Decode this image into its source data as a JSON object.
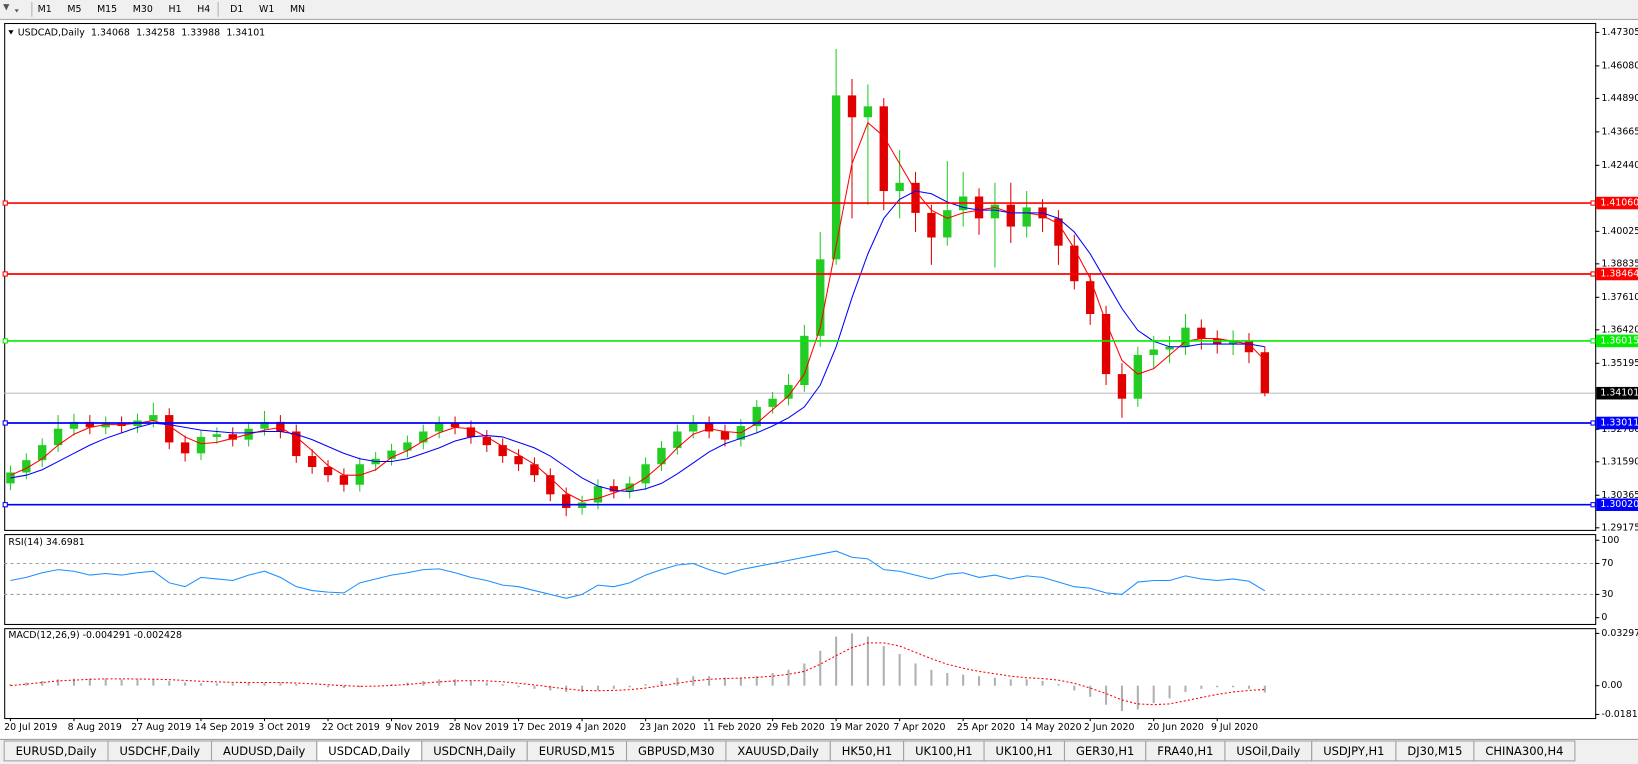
{
  "toolbar": {
    "timeframes": [
      "M1",
      "M5",
      "M15",
      "M30",
      "H1",
      "H4",
      "D1",
      "W1",
      "MN"
    ]
  },
  "tabs": [
    "EURUSD,Daily",
    "USDCHF,Daily",
    "AUDUSD,Daily",
    "USDCAD,Daily",
    "USDCNH,Daily",
    "EURUSD,M15",
    "GBPUSD,M30",
    "XAUUSD,Daily",
    "HK50,H1",
    "UK100,H1",
    "UK100,H1",
    "GER30,H1",
    "FRA40,H1",
    "USOil,Daily",
    "USDJPY,H1",
    "DJ30,M15",
    "CHINA300,H4"
  ],
  "active_tab": 3,
  "chart_data": [
    {
      "type": "candlestick",
      "title": "USDCAD,Daily",
      "quote": [
        1.34068,
        1.34258,
        1.33988,
        1.34101
      ],
      "categories": [
        "20 Jul 2019",
        null,
        null,
        null,
        "8 Aug 2019",
        null,
        null,
        null,
        "27 Aug 2019",
        null,
        null,
        null,
        "14 Sep 2019",
        null,
        null,
        null,
        "3 Oct 2019",
        null,
        null,
        null,
        "22 Oct 2019",
        null,
        null,
        null,
        "9 Nov 2019",
        null,
        null,
        null,
        "28 Nov 2019",
        null,
        null,
        null,
        "17 Dec 2019",
        null,
        null,
        null,
        "4 Jan 2020",
        null,
        null,
        null,
        "23 Jan 2020",
        null,
        null,
        null,
        "11 Feb 2020",
        null,
        null,
        null,
        "29 Feb 2020",
        null,
        null,
        null,
        "19 Mar 2020",
        null,
        null,
        null,
        "7 Apr 2020",
        null,
        null,
        null,
        "25 Apr 2020",
        null,
        null,
        null,
        "14 May 2020",
        null,
        null,
        null,
        "2 Jun 2020",
        null,
        null,
        null,
        "20 Jun 2020",
        null,
        null,
        null,
        "9 Jul 2020",
        null,
        null,
        null
      ],
      "open": [
        1.308,
        1.312,
        1.3165,
        1.322,
        1.328,
        1.3305,
        1.3285,
        1.33,
        1.329,
        1.331,
        1.333,
        1.323,
        1.319,
        1.325,
        1.326,
        1.324,
        1.328,
        1.3305,
        1.327,
        1.318,
        1.314,
        1.311,
        1.3075,
        1.315,
        1.317,
        1.32,
        1.323,
        1.327,
        1.33,
        1.3285,
        1.325,
        1.322,
        1.318,
        1.315,
        1.311,
        1.304,
        1.299,
        1.301,
        1.307,
        1.305,
        1.308,
        1.315,
        1.321,
        1.327,
        1.33,
        1.327,
        1.324,
        1.329,
        1.336,
        1.339,
        1.344,
        1.362,
        1.39,
        1.45,
        1.442,
        1.446,
        1.415,
        1.418,
        1.407,
        1.398,
        1.408,
        1.413,
        1.405,
        1.41,
        1.402,
        1.409,
        1.405,
        1.395,
        1.382,
        1.37,
        1.348,
        1.339,
        1.355,
        1.357,
        1.358,
        1.365,
        1.361,
        1.359,
        1.36,
        1.356
      ],
      "high": [
        1.3145,
        1.319,
        1.3245,
        1.333,
        1.3335,
        1.333,
        1.3325,
        1.3325,
        1.3335,
        1.3375,
        1.3355,
        1.3255,
        1.3275,
        1.3285,
        1.3285,
        1.3305,
        1.3345,
        1.333,
        1.3295,
        1.3205,
        1.3165,
        1.3135,
        1.3175,
        1.3195,
        1.3225,
        1.3255,
        1.3295,
        1.3325,
        1.3325,
        1.331,
        1.3275,
        1.3245,
        1.3205,
        1.3175,
        1.3135,
        1.3065,
        1.3035,
        1.3095,
        1.3095,
        1.3105,
        1.3175,
        1.3235,
        1.3295,
        1.333,
        1.3325,
        1.3295,
        1.3315,
        1.3385,
        1.3415,
        1.348,
        1.366,
        1.4,
        1.467,
        1.456,
        1.454,
        1.449,
        1.43,
        1.422,
        1.41,
        1.426,
        1.422,
        1.416,
        1.418,
        1.418,
        1.415,
        1.412,
        1.408,
        1.399,
        1.385,
        1.373,
        1.352,
        1.358,
        1.362,
        1.362,
        1.37,
        1.368,
        1.364,
        1.364,
        1.363,
        1.358
      ],
      "low": [
        1.3055,
        1.3095,
        1.314,
        1.3195,
        1.3255,
        1.326,
        1.326,
        1.3265,
        1.3265,
        1.3285,
        1.3205,
        1.316,
        1.3165,
        1.3225,
        1.3215,
        1.3215,
        1.3255,
        1.3245,
        1.3155,
        1.3115,
        1.3085,
        1.305,
        1.305,
        1.3125,
        1.3145,
        1.3175,
        1.3205,
        1.3245,
        1.326,
        1.3225,
        1.3195,
        1.3155,
        1.3125,
        1.3085,
        1.3015,
        1.296,
        1.2965,
        1.2985,
        1.3025,
        1.3025,
        1.3055,
        1.3125,
        1.3185,
        1.3245,
        1.3245,
        1.3215,
        1.3215,
        1.3265,
        1.3335,
        1.3365,
        1.3415,
        1.358,
        1.388,
        1.405,
        1.41,
        1.408,
        1.405,
        1.4,
        1.388,
        1.395,
        1.402,
        1.399,
        1.387,
        1.396,
        1.398,
        1.4,
        1.388,
        1.379,
        1.366,
        1.344,
        1.332,
        1.336,
        1.35,
        1.352,
        1.355,
        1.357,
        1.3555,
        1.355,
        1.352,
        1.33988
      ],
      "close": [
        1.312,
        1.3165,
        1.322,
        1.328,
        1.3305,
        1.3285,
        1.33,
        1.329,
        1.331,
        1.333,
        1.323,
        1.319,
        1.325,
        1.326,
        1.324,
        1.328,
        1.3305,
        1.327,
        1.318,
        1.314,
        1.311,
        1.3075,
        1.315,
        1.317,
        1.32,
        1.323,
        1.327,
        1.33,
        1.3285,
        1.325,
        1.322,
        1.318,
        1.315,
        1.311,
        1.304,
        1.299,
        1.301,
        1.307,
        1.305,
        1.308,
        1.315,
        1.321,
        1.327,
        1.33,
        1.327,
        1.324,
        1.329,
        1.336,
        1.339,
        1.344,
        1.362,
        1.39,
        1.45,
        1.442,
        1.446,
        1.415,
        1.418,
        1.407,
        1.398,
        1.408,
        1.413,
        1.405,
        1.41,
        1.402,
        1.409,
        1.405,
        1.395,
        1.382,
        1.37,
        1.348,
        1.339,
        1.355,
        1.357,
        1.358,
        1.365,
        1.361,
        1.359,
        1.36,
        1.356,
        1.34101
      ],
      "up_color": "#22cc22",
      "down_color": "#e00000",
      "series": [
        {
          "color": "#ff0000",
          "values": [
            1.311,
            1.3135,
            1.317,
            1.322,
            1.326,
            1.3285,
            1.3295,
            1.3295,
            1.33,
            1.331,
            1.329,
            1.325,
            1.3225,
            1.323,
            1.3245,
            1.326,
            1.3275,
            1.3285,
            1.325,
            1.32,
            1.3145,
            1.311,
            1.311,
            1.313,
            1.3175,
            1.32,
            1.3235,
            1.3265,
            1.3285,
            1.328,
            1.325,
            1.3215,
            1.3185,
            1.315,
            1.31,
            1.3045,
            1.3015,
            1.3025,
            1.3045,
            1.3065,
            1.31,
            1.315,
            1.321,
            1.326,
            1.328,
            1.327,
            1.3265,
            1.33,
            1.335,
            1.34,
            1.348,
            1.365,
            1.395,
            1.425,
            1.44,
            1.435,
            1.425,
            1.415,
            1.408,
            1.405,
            1.407,
            1.408,
            1.409,
            1.407,
            1.407,
            1.406,
            1.403,
            1.394,
            1.383,
            1.367,
            1.353,
            1.348,
            1.35,
            1.355,
            1.36,
            1.361,
            1.361,
            1.36,
            1.359,
            1.353
          ]
        },
        {
          "color": "#0000ff",
          "values": [
            1.31,
            1.311,
            1.313,
            1.316,
            1.319,
            1.322,
            1.3245,
            1.3265,
            1.3285,
            1.33,
            1.3295,
            1.3285,
            1.3275,
            1.327,
            1.3265,
            1.3265,
            1.327,
            1.327,
            1.326,
            1.324,
            1.3215,
            1.319,
            1.317,
            1.316,
            1.316,
            1.317,
            1.319,
            1.321,
            1.3235,
            1.325,
            1.3255,
            1.325,
            1.323,
            1.321,
            1.318,
            1.314,
            1.31,
            1.307,
            1.3055,
            1.305,
            1.306,
            1.308,
            1.3115,
            1.3155,
            1.3195,
            1.3225,
            1.3245,
            1.3265,
            1.329,
            1.332,
            1.336,
            1.344,
            1.358,
            1.376,
            1.392,
            1.405,
            1.412,
            1.415,
            1.414,
            1.411,
            1.409,
            1.408,
            1.408,
            1.407,
            1.407,
            1.407,
            1.405,
            1.4,
            1.392,
            1.382,
            1.372,
            1.364,
            1.36,
            1.358,
            1.358,
            1.359,
            1.359,
            1.359,
            1.359,
            1.358
          ]
        }
      ],
      "levels": [
        {
          "price": {
            "value": 1.4106,
            "label": "1.41060"
          },
          "color": "#ff0000"
        },
        {
          "price": 1.38464,
          "color": "#ff0000"
        },
        {
          "price": 1.36015,
          "color": "#00ee00"
        },
        {
          "price": 1.33011,
          "color": "#0000ff"
        },
        {
          "price": {
            "value": 1.3002,
            "label": "1.30020"
          },
          "color": "#0000ff"
        }
      ],
      "last_price": 1.34101,
      "ylim": [
        1.2906,
        1.4765
      ],
      "yticks": [
        {
          "value": 1.47305,
          "label": "1.47305"
        },
        {
          "value": 1.4608,
          "label": "1.46080"
        },
        {
          "value": 1.4489,
          "label": "1.44890"
        },
        1.43665,
        {
          "value": 1.4244,
          "label": "1.42440"
        },
        1.40025,
        1.38835,
        {
          "value": 1.3761,
          "label": "1.37610"
        },
        {
          "value": 1.3642,
          "label": "1.36420"
        },
        1.35195,
        {
          "value": 1.3278,
          "label": "1.32780"
        },
        {
          "value": 1.3159,
          "label": "1.31590"
        },
        1.30365,
        1.29175
      ]
    },
    {
      "type": "line",
      "title": "RSI(14) 34.6981",
      "ylim": [
        -9.5,
        108
      ],
      "yticks": [
        100,
        70,
        30,
        0
      ],
      "levels": [
        70,
        30
      ],
      "series": [
        {
          "color": "#1e90ff",
          "values": [
            48,
            52,
            58,
            62,
            60,
            55,
            57,
            55,
            58,
            60,
            45,
            40,
            52,
            50,
            48,
            55,
            60,
            52,
            40,
            35,
            33,
            32,
            45,
            50,
            55,
            58,
            62,
            63,
            58,
            52,
            48,
            42,
            40,
            35,
            30,
            25,
            30,
            42,
            40,
            45,
            55,
            62,
            68,
            70,
            62,
            56,
            62,
            66,
            70,
            74,
            78,
            82,
            86,
            78,
            76,
            62,
            60,
            55,
            50,
            56,
            58,
            52,
            55,
            50,
            54,
            52,
            46,
            40,
            38,
            32,
            30,
            46,
            48,
            48,
            54,
            50,
            48,
            50,
            47,
            34.6981
          ]
        }
      ]
    },
    {
      "type": "macd",
      "title": "MACD(12,26,9) -0.004291 -0.002428",
      "ylim": [
        -0.0204,
        0.0363
      ],
      "yticks": [
        0.032972,
        {
          "value": 0,
          "label": "0.00"
        },
        -0.01815
      ],
      "histogram": {
        "color": "#b0b0b0",
        "values": [
          0.001,
          0.002,
          0.003,
          0.004,
          0.0045,
          0.0045,
          0.0045,
          0.004,
          0.004,
          0.004,
          0.003,
          0.002,
          0.0015,
          0.0015,
          0.0015,
          0.002,
          0.002,
          0.002,
          0.001,
          0,
          -0.001,
          -0.0015,
          -0.001,
          0,
          0.001,
          0.002,
          0.003,
          0.004,
          0.004,
          0.003,
          0.002,
          0.001,
          -0.001,
          -0.002,
          -0.003,
          -0.004,
          -0.004,
          -0.003,
          -0.002,
          -0.001,
          0.001,
          0.003,
          0.005,
          0.006,
          0.006,
          0.005,
          0.005,
          0.006,
          0.008,
          0.01,
          0.014,
          0.022,
          0.031,
          0.033,
          0.031,
          0.025,
          0.02,
          0.014,
          0.01,
          0.008,
          0.007,
          0.006,
          0.005,
          0.004,
          0.004,
          0.003,
          0.001,
          -0.003,
          -0.007,
          -0.012,
          -0.016,
          -0.015,
          -0.011,
          -0.008,
          -0.004,
          -0.002,
          -0.001,
          -0.001,
          -0.002,
          -0.004291
        ]
      },
      "signal": {
        "color": "#ff0000",
        "values": [
          0,
          0.001,
          0.002,
          0.003,
          0.0035,
          0.004,
          0.0043,
          0.0043,
          0.0042,
          0.0041,
          0.0038,
          0.0033,
          0.0028,
          0.0024,
          0.0021,
          0.002,
          0.002,
          0.002,
          0.0017,
          0.0012,
          0.0006,
          0,
          -0.0004,
          -0.0003,
          0.0001,
          0.0008,
          0.0016,
          0.0024,
          0.003,
          0.0032,
          0.003,
          0.0025,
          0.0015,
          0.0005,
          -0.0008,
          -0.002,
          -0.003,
          -0.0032,
          -0.003,
          -0.0025,
          -0.0015,
          0,
          0.0015,
          0.003,
          0.004,
          0.0045,
          0.0048,
          0.0052,
          0.006,
          0.0072,
          0.009,
          0.0135,
          0.019,
          0.024,
          0.027,
          0.027,
          0.025,
          0.021,
          0.017,
          0.0135,
          0.011,
          0.009,
          0.0075,
          0.006,
          0.005,
          0.0045,
          0.0035,
          0.0015,
          -0.0015,
          -0.005,
          -0.009,
          -0.0115,
          -0.012,
          -0.0115,
          -0.0095,
          -0.0075,
          -0.0055,
          -0.004,
          -0.003,
          -0.002428
        ]
      }
    }
  ]
}
